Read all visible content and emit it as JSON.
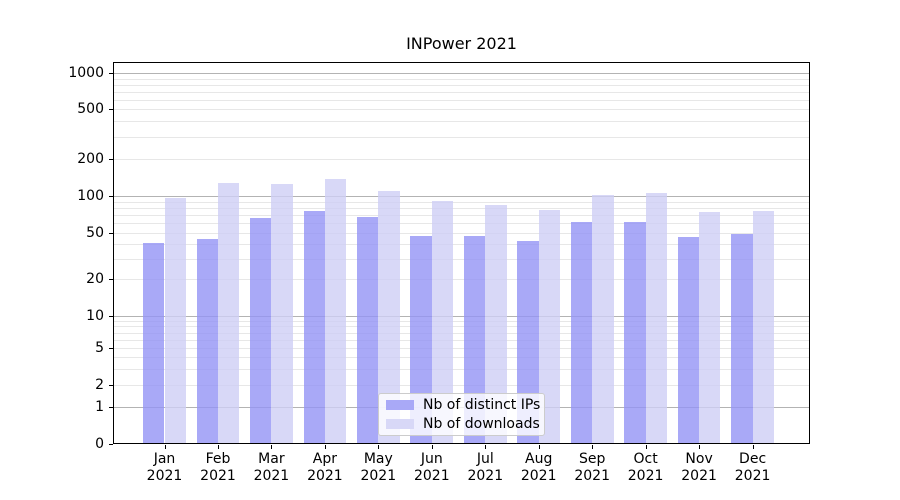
{
  "title": "INPower 2021",
  "chart_data": {
    "type": "bar",
    "title": "INPower 2021",
    "categories": [
      "Jan",
      "Feb",
      "Mar",
      "Apr",
      "May",
      "Jun",
      "Jul",
      "Aug",
      "Sep",
      "Oct",
      "Nov",
      "Dec"
    ],
    "category_year": "2021",
    "series": [
      {
        "name": "Nb of distinct IPs",
        "color": "#a9a9f7",
        "fill": "rgba(147,147,245,0.8)",
        "values": [
          41,
          44,
          66,
          75,
          67,
          47,
          47,
          43,
          62,
          61,
          46,
          49
        ]
      },
      {
        "name": "Nb of downloads",
        "color": "#d8d8f7",
        "fill": "rgba(206,206,245,0.8)",
        "values": [
          97,
          128,
          125,
          137,
          110,
          92,
          85,
          77,
          102,
          106,
          74,
          76
        ]
      }
    ],
    "xlabel": "",
    "ylabel": "",
    "y_axis": {
      "scale": "symlog",
      "tick_values": [
        0,
        1,
        2,
        5,
        10,
        20,
        50,
        100,
        200,
        500,
        1000
      ],
      "tick_labels": [
        "0",
        "1",
        "2",
        "5",
        "10",
        "20",
        "50",
        "100",
        "200",
        "500",
        "1000"
      ],
      "ylim": [
        0,
        1250
      ]
    },
    "grid": true,
    "legend": {
      "position": "lower center",
      "entries": [
        "Nb of distinct IPs",
        "Nb of downloads"
      ]
    },
    "colors": {
      "major_grid": "#b3b3b3",
      "minor_grid": "#e7e7e7",
      "axis": "#000000",
      "background": "#ffffff"
    }
  }
}
